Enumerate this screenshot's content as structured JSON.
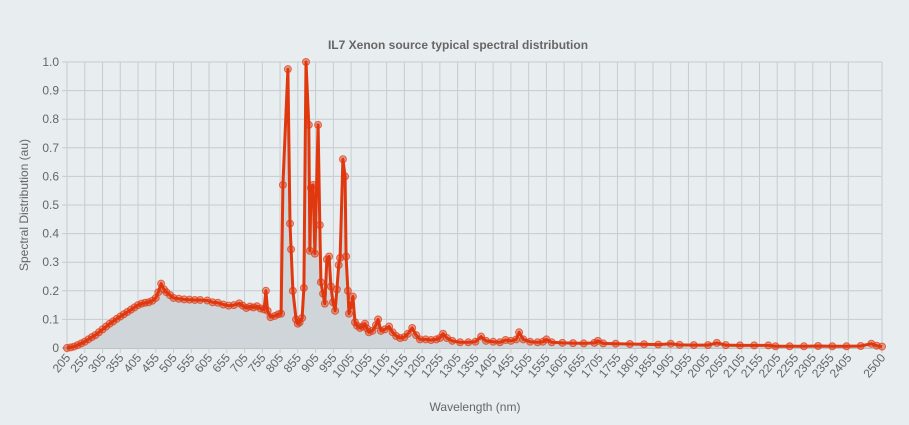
{
  "chart_data": {
    "type": "line",
    "title": "IL7 Xenon source typical spectral distribution",
    "xlabel": "Wavelength (nm)",
    "ylabel": "Spectral Distribution (au)",
    "xlim": [
      205,
      2500
    ],
    "ylim": [
      0,
      1.0
    ],
    "grid": true,
    "fill_area": true,
    "colors": {
      "line": "#e0380f",
      "marker": "#e0380f",
      "area": "#cfd5d8",
      "grid": "#c6ccd0",
      "axis": "#999999",
      "background": "#e8edf0"
    },
    "x_tick_labels": [
      "205",
      "255",
      "305",
      "355",
      "405",
      "455",
      "505",
      "555",
      "605",
      "655",
      "705",
      "755",
      "805",
      "855",
      "905",
      "955",
      "1005",
      "1055",
      "1105",
      "1155",
      "1205",
      "1255",
      "1305",
      "1355",
      "1405",
      "1455",
      "1505",
      "1555",
      "1605",
      "1655",
      "1705",
      "1755",
      "1805",
      "1855",
      "1905",
      "1955",
      "2005",
      "2055",
      "2105",
      "2155",
      "2205",
      "2255",
      "2305",
      "2355",
      "2405",
      "2500"
    ],
    "y_tick_labels": [
      "0",
      "0.1",
      "0.2",
      "0.3",
      "0.4",
      "0.5",
      "0.6",
      "0.7",
      "0.8",
      "0.9",
      "1.0"
    ],
    "points": [
      [
        205,
        0.0
      ],
      [
        215,
        0.002
      ],
      [
        225,
        0.005
      ],
      [
        235,
        0.01
      ],
      [
        245,
        0.016
      ],
      [
        255,
        0.022
      ],
      [
        265,
        0.03
      ],
      [
        275,
        0.038
      ],
      [
        285,
        0.045
      ],
      [
        295,
        0.055
      ],
      [
        305,
        0.065
      ],
      [
        315,
        0.075
      ],
      [
        325,
        0.085
      ],
      [
        335,
        0.093
      ],
      [
        345,
        0.102
      ],
      [
        355,
        0.11
      ],
      [
        365,
        0.118
      ],
      [
        375,
        0.126
      ],
      [
        385,
        0.134
      ],
      [
        395,
        0.142
      ],
      [
        405,
        0.15
      ],
      [
        415,
        0.155
      ],
      [
        425,
        0.158
      ],
      [
        435,
        0.16
      ],
      [
        445,
        0.165
      ],
      [
        455,
        0.175
      ],
      [
        462,
        0.195
      ],
      [
        470,
        0.225
      ],
      [
        478,
        0.205
      ],
      [
        485,
        0.195
      ],
      [
        495,
        0.185
      ],
      [
        505,
        0.175
      ],
      [
        520,
        0.172
      ],
      [
        535,
        0.17
      ],
      [
        550,
        0.169
      ],
      [
        565,
        0.168
      ],
      [
        580,
        0.168
      ],
      [
        600,
        0.166
      ],
      [
        615,
        0.16
      ],
      [
        630,
        0.158
      ],
      [
        645,
        0.152
      ],
      [
        660,
        0.148
      ],
      [
        675,
        0.15
      ],
      [
        690,
        0.156
      ],
      [
        700,
        0.148
      ],
      [
        710,
        0.14
      ],
      [
        720,
        0.145
      ],
      [
        730,
        0.142
      ],
      [
        740,
        0.146
      ],
      [
        750,
        0.138
      ],
      [
        760,
        0.135
      ],
      [
        765,
        0.2
      ],
      [
        770,
        0.13
      ],
      [
        778,
        0.108
      ],
      [
        790,
        0.112
      ],
      [
        800,
        0.118
      ],
      [
        808,
        0.12
      ],
      [
        813,
        0.57
      ],
      [
        827,
        0.975
      ],
      [
        833,
        0.435
      ],
      [
        836,
        0.345
      ],
      [
        841,
        0.2
      ],
      [
        850,
        0.1
      ],
      [
        855,
        0.085
      ],
      [
        860,
        0.09
      ],
      [
        867,
        0.105
      ],
      [
        872,
        0.21
      ],
      [
        878,
        1.0
      ],
      [
        886,
        0.78
      ],
      [
        889,
        0.34
      ],
      [
        892,
        0.56
      ],
      [
        898,
        0.57
      ],
      [
        903,
        0.33
      ],
      [
        912,
        0.78
      ],
      [
        917,
        0.43
      ],
      [
        920,
        0.23
      ],
      [
        926,
        0.19
      ],
      [
        931,
        0.155
      ],
      [
        937,
        0.31
      ],
      [
        943,
        0.32
      ],
      [
        948,
        0.215
      ],
      [
        954,
        0.16
      ],
      [
        960,
        0.13
      ],
      [
        965,
        0.205
      ],
      [
        970,
        0.29
      ],
      [
        974,
        0.315
      ],
      [
        982,
        0.66
      ],
      [
        988,
        0.6
      ],
      [
        991,
        0.32
      ],
      [
        996,
        0.2
      ],
      [
        999,
        0.12
      ],
      [
        1005,
        0.15
      ],
      [
        1010,
        0.18
      ],
      [
        1016,
        0.09
      ],
      [
        1022,
        0.078
      ],
      [
        1030,
        0.07
      ],
      [
        1037,
        0.075
      ],
      [
        1044,
        0.085
      ],
      [
        1050,
        0.068
      ],
      [
        1055,
        0.055
      ],
      [
        1065,
        0.06
      ],
      [
        1075,
        0.08
      ],
      [
        1081,
        0.1
      ],
      [
        1089,
        0.06
      ],
      [
        1100,
        0.065
      ],
      [
        1112,
        0.075
      ],
      [
        1122,
        0.055
      ],
      [
        1132,
        0.042
      ],
      [
        1143,
        0.035
      ],
      [
        1155,
        0.038
      ],
      [
        1165,
        0.05
      ],
      [
        1177,
        0.07
      ],
      [
        1188,
        0.045
      ],
      [
        1199,
        0.03
      ],
      [
        1215,
        0.03
      ],
      [
        1230,
        0.028
      ],
      [
        1245,
        0.03
      ],
      [
        1255,
        0.035
      ],
      [
        1264,
        0.05
      ],
      [
        1275,
        0.035
      ],
      [
        1290,
        0.025
      ],
      [
        1312,
        0.02
      ],
      [
        1335,
        0.02
      ],
      [
        1355,
        0.022
      ],
      [
        1371,
        0.04
      ],
      [
        1385,
        0.025
      ],
      [
        1405,
        0.022
      ],
      [
        1424,
        0.02
      ],
      [
        1440,
        0.028
      ],
      [
        1455,
        0.025
      ],
      [
        1470,
        0.03
      ],
      [
        1478,
        0.055
      ],
      [
        1490,
        0.03
      ],
      [
        1509,
        0.022
      ],
      [
        1530,
        0.02
      ],
      [
        1545,
        0.022
      ],
      [
        1555,
        0.03
      ],
      [
        1570,
        0.02
      ],
      [
        1600,
        0.018
      ],
      [
        1630,
        0.017
      ],
      [
        1660,
        0.016
      ],
      [
        1690,
        0.018
      ],
      [
        1700,
        0.025
      ],
      [
        1715,
        0.016
      ],
      [
        1750,
        0.015
      ],
      [
        1790,
        0.014
      ],
      [
        1830,
        0.013
      ],
      [
        1870,
        0.012
      ],
      [
        1905,
        0.015
      ],
      [
        1930,
        0.011
      ],
      [
        1970,
        0.01
      ],
      [
        2010,
        0.01
      ],
      [
        2035,
        0.018
      ],
      [
        2060,
        0.01
      ],
      [
        2100,
        0.009
      ],
      [
        2140,
        0.009
      ],
      [
        2180,
        0.009
      ],
      [
        2200,
        0.006
      ],
      [
        2240,
        0.006
      ],
      [
        2280,
        0.006
      ],
      [
        2320,
        0.007
      ],
      [
        2360,
        0.006
      ],
      [
        2400,
        0.006
      ],
      [
        2440,
        0.007
      ],
      [
        2470,
        0.015
      ],
      [
        2485,
        0.008
      ],
      [
        2500,
        0.005
      ]
    ]
  }
}
